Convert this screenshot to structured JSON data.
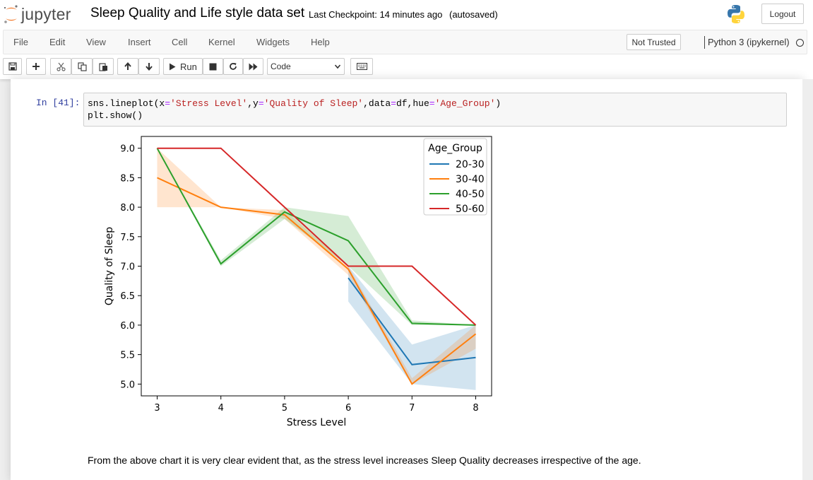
{
  "header": {
    "logo_text": "jupyter",
    "title": "Sleep Quality and Life style data set",
    "checkpoint": "Last Checkpoint: 14 minutes ago",
    "autosave": "(autosaved)",
    "logout_label": "Logout"
  },
  "menu": {
    "items": [
      "File",
      "Edit",
      "View",
      "Insert",
      "Cell",
      "Kernel",
      "Widgets",
      "Help"
    ],
    "trust_label": "Not Trusted",
    "kernel_name": "Python 3 (ipykernel)"
  },
  "toolbar": {
    "run_label": "Run",
    "cell_type": "Code",
    "icons": [
      "save-icon",
      "plus-icon",
      "cut-icon",
      "copy-icon",
      "paste-icon",
      "arrow-up-icon",
      "arrow-down-icon",
      "play-icon",
      "stop-icon",
      "restart-icon",
      "fast-forward-icon",
      "chevron-down-icon",
      "keyboard-icon"
    ]
  },
  "cell": {
    "prompt": "In [41]:",
    "code_lines": [
      [
        {
          "t": "sns.lineplot(x",
          "c": "plain"
        },
        {
          "t": "=",
          "c": "op"
        },
        {
          "t": "'Stress Level'",
          "c": "str"
        },
        {
          "t": ",y",
          "c": "plain"
        },
        {
          "t": "=",
          "c": "op"
        },
        {
          "t": "'Quality of Sleep'",
          "c": "str"
        },
        {
          "t": ",data",
          "c": "plain"
        },
        {
          "t": "=",
          "c": "op"
        },
        {
          "t": "df,hue",
          "c": "plain"
        },
        {
          "t": "=",
          "c": "op"
        },
        {
          "t": "'Age_Group'",
          "c": "str"
        },
        {
          "t": ")",
          "c": "plain"
        }
      ],
      [
        {
          "t": "plt.show()",
          "c": "plain"
        }
      ]
    ]
  },
  "markdown": {
    "text": "From the above chart it is very clear evident that, as the stress level increases Sleep Quality decreases irrespective of the age."
  },
  "chart_data": {
    "type": "line",
    "xlabel": "Stress Level",
    "ylabel": "Quality of Sleep",
    "xlim": [
      2.75,
      8.25
    ],
    "ylim": [
      4.8,
      9.2
    ],
    "xticks": [
      3,
      4,
      5,
      6,
      7,
      8
    ],
    "yticks": [
      5.0,
      5.5,
      6.0,
      6.5,
      7.0,
      7.5,
      8.0,
      8.5,
      9.0
    ],
    "grid": false,
    "legend_title": "Age_Group",
    "legend_placement": "top-right",
    "series": [
      {
        "name": "20-30",
        "color": "#1f77b4",
        "x": [
          6,
          7,
          8
        ],
        "y": [
          6.8,
          5.33,
          5.45
        ],
        "ci_low": [
          6.4,
          5.0,
          4.9
        ],
        "ci_high": [
          7.0,
          5.67,
          6.0
        ]
      },
      {
        "name": "30-40",
        "color": "#ff7f0e",
        "x": [
          3,
          4,
          5,
          6,
          7,
          8
        ],
        "y": [
          8.5,
          8.0,
          7.87,
          6.95,
          5.0,
          5.85
        ],
        "ci_low": [
          8.0,
          8.0,
          7.8,
          6.85,
          5.0,
          5.6
        ],
        "ci_high": [
          9.0,
          8.0,
          7.95,
          7.0,
          5.1,
          6.0
        ]
      },
      {
        "name": "40-50",
        "color": "#2ca02c",
        "x": [
          3,
          4,
          5,
          6,
          7,
          8
        ],
        "y": [
          9.0,
          7.04,
          7.92,
          7.43,
          6.03,
          6.0
        ],
        "ci_low": [
          9.0,
          7.0,
          7.8,
          7.0,
          6.0,
          6.0
        ],
        "ci_high": [
          9.0,
          7.1,
          8.0,
          7.85,
          6.08,
          6.0
        ]
      },
      {
        "name": "50-60",
        "color": "#d62728",
        "x": [
          3,
          4,
          5,
          6,
          7,
          8
        ],
        "y": [
          9.0,
          9.0,
          8.0,
          7.0,
          7.0,
          6.0
        ],
        "ci_low": [
          9.0,
          9.0,
          8.0,
          7.0,
          7.0,
          6.0
        ],
        "ci_high": [
          9.0,
          9.0,
          8.0,
          7.0,
          7.0,
          6.0
        ]
      }
    ]
  }
}
